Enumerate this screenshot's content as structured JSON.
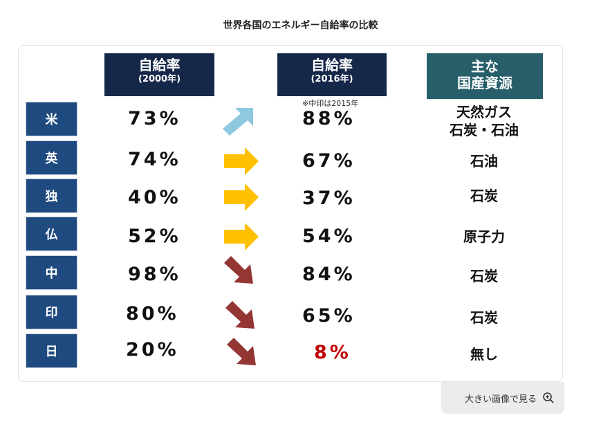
{
  "title": "世界各国のエネルギー自給率の比較",
  "headers": {
    "col2000": {
      "line1": "自給率",
      "line2": "(2000年)"
    },
    "col2016": {
      "line1": "自給率",
      "line2": "(2016年)"
    },
    "resources": {
      "line1": "主な",
      "line2": "国産資源"
    }
  },
  "note": "※中印は2015年",
  "rows": [
    {
      "country": "米",
      "v2000": "73%",
      "v2016": "88%",
      "res1": "天然ガス",
      "res2": "石炭・石油",
      "trend": "up"
    },
    {
      "country": "英",
      "v2000": "74%",
      "v2016": "67%",
      "res1": "石油",
      "res2": "",
      "trend": "flat"
    },
    {
      "country": "独",
      "v2000": "40%",
      "v2016": "37%",
      "res1": "石炭",
      "res2": "",
      "trend": "flat"
    },
    {
      "country": "仏",
      "v2000": "52%",
      "v2016": "54%",
      "res1": "原子力",
      "res2": "",
      "trend": "flat"
    },
    {
      "country": "中",
      "v2000": "98%",
      "v2016": "84%",
      "res1": "石炭",
      "res2": "",
      "trend": "down"
    },
    {
      "country": "印",
      "v2000": "80%",
      "v2016": "65%",
      "res1": "石炭",
      "res2": "",
      "trend": "down"
    },
    {
      "country": "日",
      "v2000": "20%",
      "v2016": "8%",
      "res1": "無し",
      "res2": "",
      "trend": "down"
    }
  ],
  "colors": {
    "up": "#8ec8df",
    "flat": "#ffc000",
    "down": "#943634",
    "highlight": "#c00000"
  },
  "view_button": {
    "label": "大きい画像で見る",
    "icon": "zoom-in-icon"
  }
}
